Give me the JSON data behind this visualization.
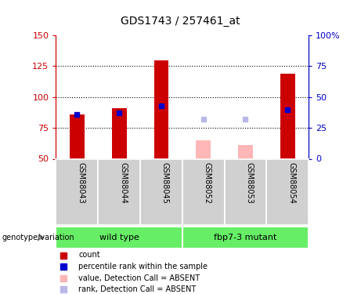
{
  "title": "GDS1743 / 257461_at",
  "samples": [
    "GSM88043",
    "GSM88044",
    "GSM88045",
    "GSM88052",
    "GSM88053",
    "GSM88054"
  ],
  "red_bars": [
    86,
    91,
    130,
    null,
    null,
    119
  ],
  "blue_squares_left_scale": [
    86,
    87,
    93,
    null,
    null,
    90
  ],
  "pink_bars": [
    null,
    null,
    null,
    65,
    61,
    null
  ],
  "lavender_squares_left_scale": [
    null,
    null,
    null,
    82,
    82,
    null
  ],
  "ylim_left": [
    50,
    150
  ],
  "ylim_right": [
    0,
    100
  ],
  "yticks_left": [
    50,
    75,
    100,
    125,
    150
  ],
  "yticks_right": [
    0,
    25,
    50,
    75,
    100
  ],
  "ytick_labels_left": [
    "50",
    "75",
    "100",
    "125",
    "150"
  ],
  "ytick_labels_right": [
    "0",
    "25",
    "50",
    "75",
    "100%"
  ],
  "hgrid_values": [
    75,
    100,
    125
  ],
  "bar_width": 0.35,
  "red_color": "#cc0000",
  "blue_color": "#0000cc",
  "pink_color": "#ffb6b6",
  "lavender_color": "#b8b8e8",
  "bg_color": "#ffffff",
  "label_box_color": "#d0d0d0",
  "green_color": "#66ee66",
  "legend_items": [
    {
      "label": "count",
      "color": "#cc0000"
    },
    {
      "label": "percentile rank within the sample",
      "color": "#0000cc"
    },
    {
      "label": "value, Detection Call = ABSENT",
      "color": "#ffb6b6"
    },
    {
      "label": "rank, Detection Call = ABSENT",
      "color": "#b8b8e8"
    }
  ]
}
